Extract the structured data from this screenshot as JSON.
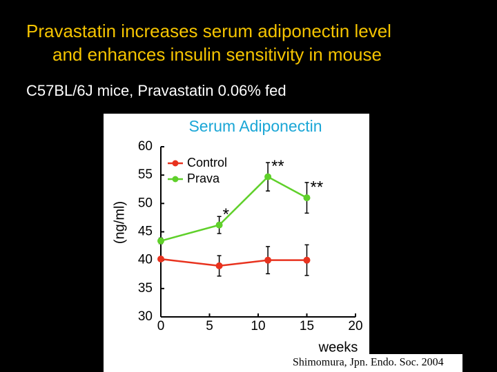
{
  "header": {
    "title_lines": [
      "Pravastatin increases serum adiponectin level",
      "and enhances insulin sensitivity in mouse"
    ],
    "subtitle": "C57BL/6J mice, Pravastatin 0.06% fed"
  },
  "chart_data": {
    "type": "line",
    "title": "Serum Adiponectin",
    "y_label": "(ng/ml)",
    "x_label": "weeks",
    "x": [
      0,
      6,
      11,
      15
    ],
    "series": [
      {
        "name": "Control",
        "color": "#e8321e",
        "values": [
          40.2,
          39,
          40,
          40
        ],
        "errors": [
          0.3,
          1.8,
          2.4,
          2.7
        ]
      },
      {
        "name": "Prava",
        "color": "#5fd02a",
        "values": [
          43.4,
          46.2,
          54.7,
          51
        ],
        "errors": [
          0.5,
          1.5,
          2.5,
          2.7
        ],
        "significance": [
          null,
          "*",
          "**",
          "**"
        ]
      }
    ],
    "xlim": [
      0,
      20
    ],
    "xticks": [
      0,
      5,
      10,
      15,
      20
    ],
    "ylim": [
      30,
      60
    ],
    "yticks": [
      30,
      35,
      40,
      45,
      50,
      55,
      60
    ],
    "legend": "upper-left"
  },
  "footer": {
    "citation": "Shimomura, Jpn. Endo. Soc. 2004"
  }
}
